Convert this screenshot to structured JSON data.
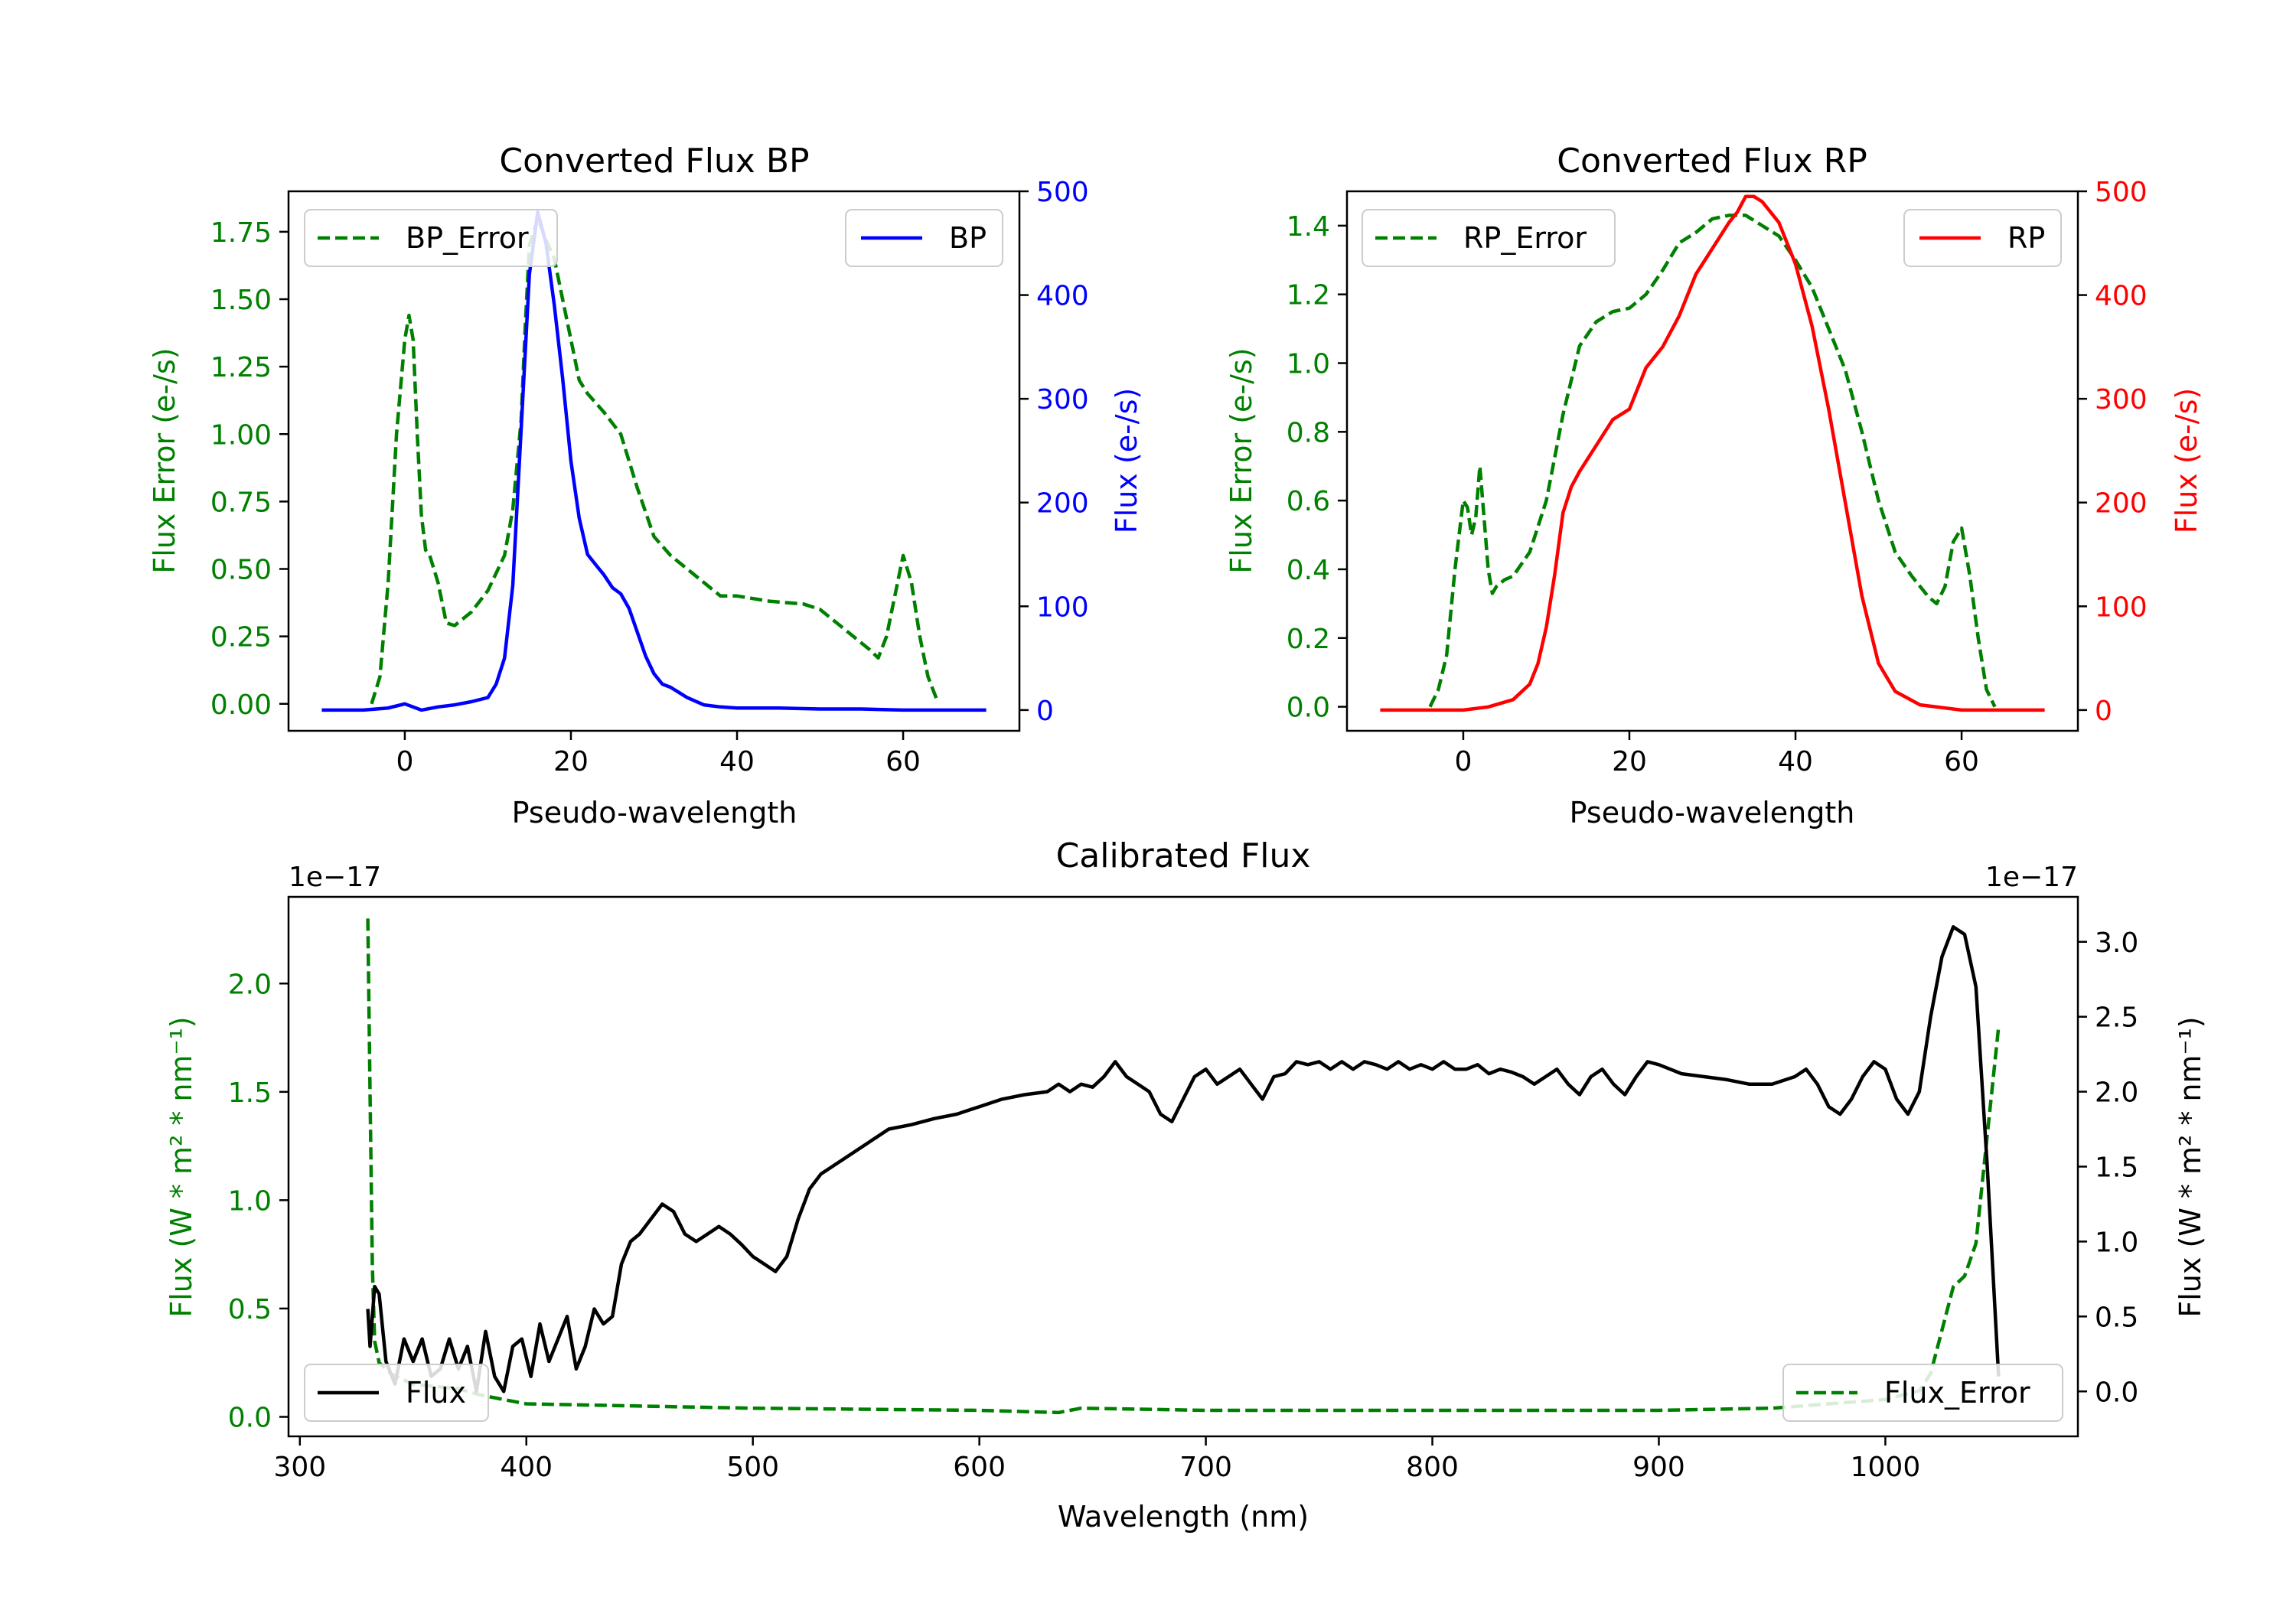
{
  "colors": {
    "error": "#008000",
    "bp": "#0000ff",
    "rp": "#ff0000",
    "flux": "#000000",
    "axis": "#000000"
  },
  "chart_data": [
    {
      "type": "line",
      "title": "Converted Flux BP",
      "xlabel": "Pseudo-wavelength",
      "ylabel_left": "Flux Error (e-/s)",
      "ylabel_right": "Flux (e-/s)",
      "xlim": [
        -14,
        74
      ],
      "ylim_left": [
        -0.1,
        1.9
      ],
      "ylim_right": [
        -20,
        500
      ],
      "xticks": [
        0,
        20,
        40,
        60
      ],
      "yticks_left": [
        "0.00",
        "0.25",
        "0.50",
        "0.75",
        "1.00",
        "1.25",
        "1.50",
        "1.75"
      ],
      "yticks_left_values": [
        0,
        0.25,
        0.5,
        0.75,
        1.0,
        1.25,
        1.5,
        1.75
      ],
      "yticks_right": [
        0,
        100,
        200,
        300,
        400,
        500
      ],
      "series": [
        {
          "name": "BP_Error",
          "axis": "left",
          "style": "dashed",
          "color_key": "error",
          "x": [
            -4,
            -3,
            -2,
            -1,
            0,
            0.5,
            1,
            1.5,
            2,
            2.5,
            3,
            4,
            5,
            6,
            8,
            10,
            12,
            13,
            14,
            14.5,
            15,
            16,
            17,
            18,
            19,
            20,
            21,
            22,
            24,
            26,
            28,
            30,
            32,
            34,
            36,
            38,
            40,
            44,
            48,
            50,
            52,
            54,
            56,
            57,
            58,
            59,
            60,
            61,
            62,
            63,
            64
          ],
          "values": [
            0.0,
            0.1,
            0.45,
            1.0,
            1.35,
            1.44,
            1.35,
            1.0,
            0.7,
            0.57,
            0.55,
            0.45,
            0.3,
            0.29,
            0.34,
            0.42,
            0.55,
            0.72,
            1.05,
            1.4,
            1.7,
            1.8,
            1.72,
            1.65,
            1.5,
            1.35,
            1.2,
            1.15,
            1.08,
            1.0,
            0.8,
            0.62,
            0.55,
            0.5,
            0.45,
            0.4,
            0.4,
            0.38,
            0.37,
            0.35,
            0.3,
            0.25,
            0.2,
            0.17,
            0.25,
            0.4,
            0.55,
            0.45,
            0.25,
            0.1,
            0.02
          ]
        },
        {
          "name": "BP",
          "axis": "right",
          "style": "solid",
          "color_key": "bp",
          "x": [
            -10,
            -5,
            -2,
            0,
            2,
            4,
            6,
            8,
            10,
            11,
            12,
            13,
            14,
            15,
            16,
            17,
            18,
            19,
            20,
            21,
            22,
            23,
            24,
            25,
            26,
            27,
            28,
            29,
            30,
            31,
            32,
            34,
            36,
            38,
            40,
            45,
            50,
            55,
            60,
            65,
            70
          ],
          "values": [
            0,
            0,
            2,
            6,
            0,
            3,
            5,
            8,
            12,
            25,
            50,
            120,
            270,
            420,
            480,
            450,
            390,
            320,
            240,
            185,
            150,
            140,
            130,
            118,
            112,
            98,
            75,
            52,
            35,
            25,
            22,
            12,
            5,
            3,
            2,
            2,
            1,
            1,
            0,
            0,
            0
          ]
        }
      ],
      "legend": [
        {
          "label": "BP_Error",
          "placement": "upper left"
        },
        {
          "label": "BP",
          "placement": "upper right"
        }
      ]
    },
    {
      "type": "line",
      "title": "Converted Flux RP",
      "xlabel": "Pseudo-wavelength",
      "ylabel_left": "Flux Error (e-/s)",
      "ylabel_right": "Flux (e-/s)",
      "xlim": [
        -14,
        74
      ],
      "ylim_left": [
        -0.07,
        1.5
      ],
      "ylim_right": [
        -20,
        500
      ],
      "xticks": [
        0,
        20,
        40,
        60
      ],
      "yticks_left": [
        "0.0",
        "0.2",
        "0.4",
        "0.6",
        "0.8",
        "1.0",
        "1.2",
        "1.4"
      ],
      "yticks_left_values": [
        0,
        0.2,
        0.4,
        0.6,
        0.8,
        1.0,
        1.2,
        1.4
      ],
      "yticks_right": [
        0,
        100,
        200,
        300,
        400,
        500
      ],
      "series": [
        {
          "name": "RP_Error",
          "axis": "left",
          "style": "dashed",
          "color_key": "error",
          "x": [
            -4,
            -3,
            -2,
            -1,
            0,
            0.5,
            1,
            1.5,
            2,
            2.5,
            3,
            3.5,
            4,
            5,
            6,
            8,
            10,
            12,
            14,
            16,
            18,
            20,
            22,
            24,
            26,
            28,
            30,
            32,
            34,
            36,
            38,
            40,
            42,
            44,
            46,
            48,
            50,
            52,
            54,
            55,
            56,
            57,
            58,
            59,
            60,
            61,
            62,
            63,
            64
          ],
          "values": [
            0.0,
            0.05,
            0.15,
            0.4,
            0.6,
            0.58,
            0.5,
            0.55,
            0.7,
            0.55,
            0.4,
            0.33,
            0.35,
            0.37,
            0.38,
            0.45,
            0.6,
            0.85,
            1.05,
            1.12,
            1.15,
            1.16,
            1.2,
            1.27,
            1.35,
            1.38,
            1.42,
            1.43,
            1.43,
            1.4,
            1.37,
            1.3,
            1.22,
            1.1,
            0.98,
            0.8,
            0.6,
            0.45,
            0.38,
            0.35,
            0.32,
            0.3,
            0.35,
            0.48,
            0.52,
            0.38,
            0.2,
            0.05,
            0.0
          ]
        },
        {
          "name": "RP",
          "axis": "right",
          "style": "solid",
          "color_key": "rp",
          "x": [
            -10,
            -5,
            0,
            3,
            6,
            8,
            9,
            10,
            11,
            12,
            13,
            14,
            16,
            18,
            20,
            22,
            24,
            26,
            28,
            30,
            32,
            33,
            34,
            35,
            36,
            38,
            40,
            42,
            44,
            46,
            48,
            50,
            52,
            55,
            60,
            65,
            70
          ],
          "values": [
            0,
            0,
            0,
            3,
            10,
            25,
            45,
            80,
            130,
            190,
            215,
            230,
            255,
            280,
            290,
            330,
            350,
            380,
            420,
            445,
            470,
            480,
            495,
            495,
            490,
            470,
            430,
            370,
            290,
            200,
            110,
            45,
            18,
            5,
            0,
            0,
            0
          ]
        }
      ],
      "legend": [
        {
          "label": "RP_Error",
          "placement": "upper left"
        },
        {
          "label": "RP",
          "placement": "upper right"
        }
      ]
    },
    {
      "type": "line",
      "title": "Calibrated Flux",
      "xlabel": "Wavelength (nm)",
      "ylabel_left": "Flux (W * m² * nm⁻¹)",
      "ylabel_right": "Flux (W * m² * nm⁻¹)",
      "offset_left": "1e−17",
      "offset_right": "1e−17",
      "xlim": [
        295,
        1085
      ],
      "ylim_left": [
        -0.09,
        2.4
      ],
      "ylim_right": [
        -0.3,
        3.3
      ],
      "xticks": [
        300,
        400,
        500,
        600,
        700,
        800,
        900,
        1000
      ],
      "yticks_left": [
        "0.0",
        "0.5",
        "1.0",
        "1.5",
        "2.0"
      ],
      "yticks_left_values": [
        0,
        0.5,
        1.0,
        1.5,
        2.0
      ],
      "yticks_right": [
        "0.0",
        "0.5",
        "1.0",
        "1.5",
        "2.0",
        "2.5",
        "3.0"
      ],
      "yticks_right_values": [
        0,
        0.5,
        1.0,
        1.5,
        2.0,
        2.5,
        3.0
      ],
      "series": [
        {
          "name": "Flux_Error",
          "axis": "left",
          "style": "dashed",
          "color_key": "error",
          "x": [
            330,
            331,
            332,
            333,
            335,
            340,
            350,
            370,
            380,
            390,
            400,
            450,
            500,
            550,
            600,
            635,
            645,
            700,
            800,
            900,
            950,
            1000,
            1015,
            1020,
            1025,
            1030,
            1035,
            1040,
            1045,
            1050
          ],
          "values": [
            2.3,
            1.5,
            0.7,
            0.35,
            0.25,
            0.2,
            0.15,
            0.13,
            0.1,
            0.08,
            0.06,
            0.05,
            0.04,
            0.035,
            0.03,
            0.02,
            0.04,
            0.03,
            0.03,
            0.03,
            0.04,
            0.08,
            0.12,
            0.2,
            0.4,
            0.6,
            0.65,
            0.8,
            1.3,
            1.8
          ]
        },
        {
          "name": "Flux",
          "axis": "right",
          "style": "solid",
          "color_key": "flux",
          "x": [
            330,
            331,
            333,
            335,
            338,
            342,
            346,
            350,
            354,
            358,
            362,
            366,
            370,
            374,
            378,
            382,
            386,
            390,
            394,
            398,
            402,
            406,
            410,
            414,
            418,
            422,
            426,
            430,
            434,
            438,
            442,
            446,
            450,
            455,
            460,
            465,
            470,
            475,
            480,
            485,
            490,
            495,
            500,
            505,
            510,
            515,
            520,
            525,
            530,
            540,
            550,
            560,
            570,
            580,
            590,
            600,
            610,
            620,
            630,
            635,
            640,
            645,
            650,
            655,
            660,
            665,
            670,
            675,
            680,
            685,
            690,
            695,
            700,
            705,
            710,
            715,
            720,
            725,
            730,
            735,
            740,
            745,
            750,
            755,
            760,
            765,
            770,
            775,
            780,
            785,
            790,
            795,
            800,
            805,
            810,
            815,
            820,
            825,
            830,
            835,
            840,
            845,
            850,
            855,
            860,
            865,
            870,
            875,
            880,
            885,
            890,
            895,
            900,
            905,
            910,
            920,
            930,
            940,
            950,
            960,
            965,
            970,
            975,
            980,
            985,
            990,
            995,
            1000,
            1005,
            1010,
            1015,
            1020,
            1025,
            1030,
            1035,
            1040,
            1045,
            1050
          ],
          "values": [
            0.55,
            0.3,
            0.7,
            0.65,
            0.2,
            0.05,
            0.35,
            0.2,
            0.35,
            0.1,
            0.15,
            0.35,
            0.15,
            0.3,
            0.0,
            0.4,
            0.1,
            0.0,
            0.3,
            0.35,
            0.1,
            0.45,
            0.2,
            0.35,
            0.5,
            0.15,
            0.3,
            0.55,
            0.45,
            0.5,
            0.85,
            1.0,
            1.05,
            1.15,
            1.25,
            1.2,
            1.05,
            1.0,
            1.05,
            1.1,
            1.05,
            0.98,
            0.9,
            0.85,
            0.8,
            0.9,
            1.15,
            1.35,
            1.45,
            1.55,
            1.65,
            1.75,
            1.78,
            1.82,
            1.85,
            1.9,
            1.95,
            1.98,
            2.0,
            2.05,
            2.0,
            2.05,
            2.03,
            2.1,
            2.2,
            2.1,
            2.05,
            2.0,
            1.85,
            1.8,
            1.95,
            2.1,
            2.15,
            2.05,
            2.1,
            2.15,
            2.05,
            1.95,
            2.1,
            2.12,
            2.2,
            2.18,
            2.2,
            2.15,
            2.2,
            2.15,
            2.2,
            2.18,
            2.15,
            2.2,
            2.15,
            2.18,
            2.15,
            2.2,
            2.15,
            2.15,
            2.18,
            2.12,
            2.15,
            2.13,
            2.1,
            2.05,
            2.1,
            2.15,
            2.05,
            1.98,
            2.1,
            2.15,
            2.05,
            1.98,
            2.1,
            2.2,
            2.18,
            2.15,
            2.12,
            2.1,
            2.08,
            2.05,
            2.05,
            2.1,
            2.15,
            2.05,
            1.9,
            1.85,
            1.95,
            2.1,
            2.2,
            2.15,
            1.95,
            1.85,
            2.0,
            2.5,
            2.9,
            3.1,
            3.05,
            2.7,
            1.5,
            0.1
          ]
        }
      ],
      "legend": [
        {
          "label": "Flux",
          "placement": "lower left"
        },
        {
          "label": "Flux_Error",
          "placement": "lower right"
        }
      ]
    }
  ]
}
